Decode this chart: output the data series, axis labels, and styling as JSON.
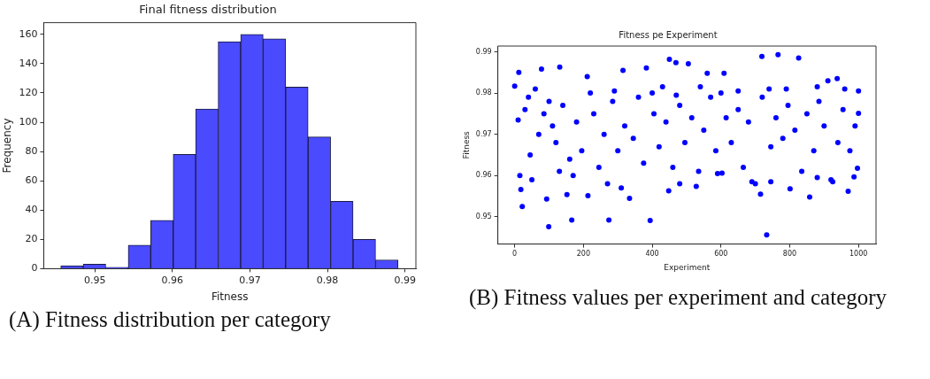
{
  "chart_data": [
    {
      "type": "histogram",
      "title": "Final fitness distribution",
      "xlabel": "Fitness",
      "ylabel": "Frequency",
      "color": "#4a4aff",
      "bins": [
        0.9456,
        0.9485,
        0.9514,
        0.9543,
        0.9572,
        0.9601,
        0.963,
        0.9659,
        0.9688,
        0.9717,
        0.9746,
        0.9775,
        0.9804,
        0.9833,
        0.9862,
        0.9891
      ],
      "values": [
        2,
        3,
        1,
        16,
        33,
        78,
        109,
        155,
        160,
        157,
        124,
        90,
        46,
        20,
        6
      ],
      "xlim": [
        0.9434,
        0.9914
      ],
      "xticks": [
        0.95,
        0.96,
        0.97,
        0.98,
        0.99
      ],
      "ylim": [
        0,
        168
      ],
      "yticks": [
        0,
        20,
        40,
        60,
        80,
        100,
        120,
        140,
        160
      ],
      "grid": false,
      "annotations": [
        "(A) Fitness distribution per category"
      ]
    },
    {
      "type": "scatter",
      "title": "Fitness pe Experiment",
      "xlabel": "Experiment",
      "ylabel": "Fitness",
      "color": "#0000ff",
      "marker": "circle",
      "x": [
        0,
        12,
        22,
        18,
        78,
        93,
        99,
        131,
        152,
        166,
        211,
        213,
        274,
        315,
        334,
        383,
        394,
        450,
        469,
        505,
        448,
        528,
        560,
        609,
        603,
        719,
        766,
        826,
        733,
        715,
        858,
        801,
        970,
        1000,
        1000,
        997,
        938,
        911,
        987,
        30,
        45,
        60,
        70,
        85,
        110,
        120,
        140,
        160,
        180,
        195,
        230,
        245,
        260,
        285,
        300,
        320,
        345,
        360,
        375,
        405,
        420,
        440,
        460,
        480,
        495,
        515,
        535,
        550,
        570,
        585,
        615,
        630,
        650,
        665,
        680,
        700,
        720,
        745,
        760,
        780,
        795,
        815,
        835,
        850,
        870,
        885,
        900,
        920,
        940,
        955,
        975,
        990,
        15,
        50,
        130,
        170,
        270,
        310,
        480,
        590,
        690,
        745,
        880,
        925,
        10,
        40,
        100,
        220,
        290,
        400,
        430,
        470,
        540,
        600,
        650,
        740,
        790,
        880,
        960
      ],
      "values": [
        0.9817,
        0.985,
        0.9525,
        0.9566,
        0.9858,
        0.9543,
        0.9476,
        0.9863,
        0.9554,
        0.9492,
        0.984,
        0.9551,
        0.9492,
        0.9855,
        0.9545,
        0.9861,
        0.9491,
        0.9882,
        0.9874,
        0.9871,
        0.9563,
        0.9574,
        0.9848,
        0.9848,
        0.9606,
        0.9889,
        0.9893,
        0.9885,
        0.9456,
        0.9555,
        0.9548,
        0.9568,
        0.9562,
        0.9805,
        0.9751,
        0.9618,
        0.9835,
        0.983,
        0.9597,
        0.976,
        0.965,
        0.981,
        0.97,
        0.975,
        0.972,
        0.968,
        0.977,
        0.964,
        0.973,
        0.966,
        0.975,
        0.962,
        0.97,
        0.978,
        0.966,
        0.972,
        0.969,
        0.979,
        0.963,
        0.975,
        0.967,
        0.973,
        0.962,
        0.977,
        0.968,
        0.974,
        0.961,
        0.971,
        0.979,
        0.966,
        0.974,
        0.968,
        0.976,
        0.962,
        0.973,
        0.958,
        0.979,
        0.967,
        0.974,
        0.969,
        0.977,
        0.971,
        0.961,
        0.975,
        0.966,
        0.978,
        0.972,
        0.959,
        0.968,
        0.976,
        0.966,
        0.972,
        0.96,
        0.959,
        0.961,
        0.96,
        0.958,
        0.957,
        0.958,
        0.9605,
        0.9585,
        0.9585,
        0.9595,
        0.9585,
        0.9735,
        0.979,
        0.978,
        0.98,
        0.9805,
        0.98,
        0.9815,
        0.9795,
        0.9815,
        0.98,
        0.9805,
        0.981,
        0.981,
        0.9815,
        0.981
      ],
      "xlim": [
        -49,
        1051
      ],
      "xticks": [
        0,
        200,
        400,
        600,
        800,
        1000
      ],
      "ylim": [
        0.9434,
        0.9914
      ],
      "yticks": [
        0.95,
        0.96,
        0.97,
        0.98,
        0.99
      ],
      "grid": false,
      "annotations": [
        "(B) Fitness values per experiment and category"
      ]
    }
  ]
}
